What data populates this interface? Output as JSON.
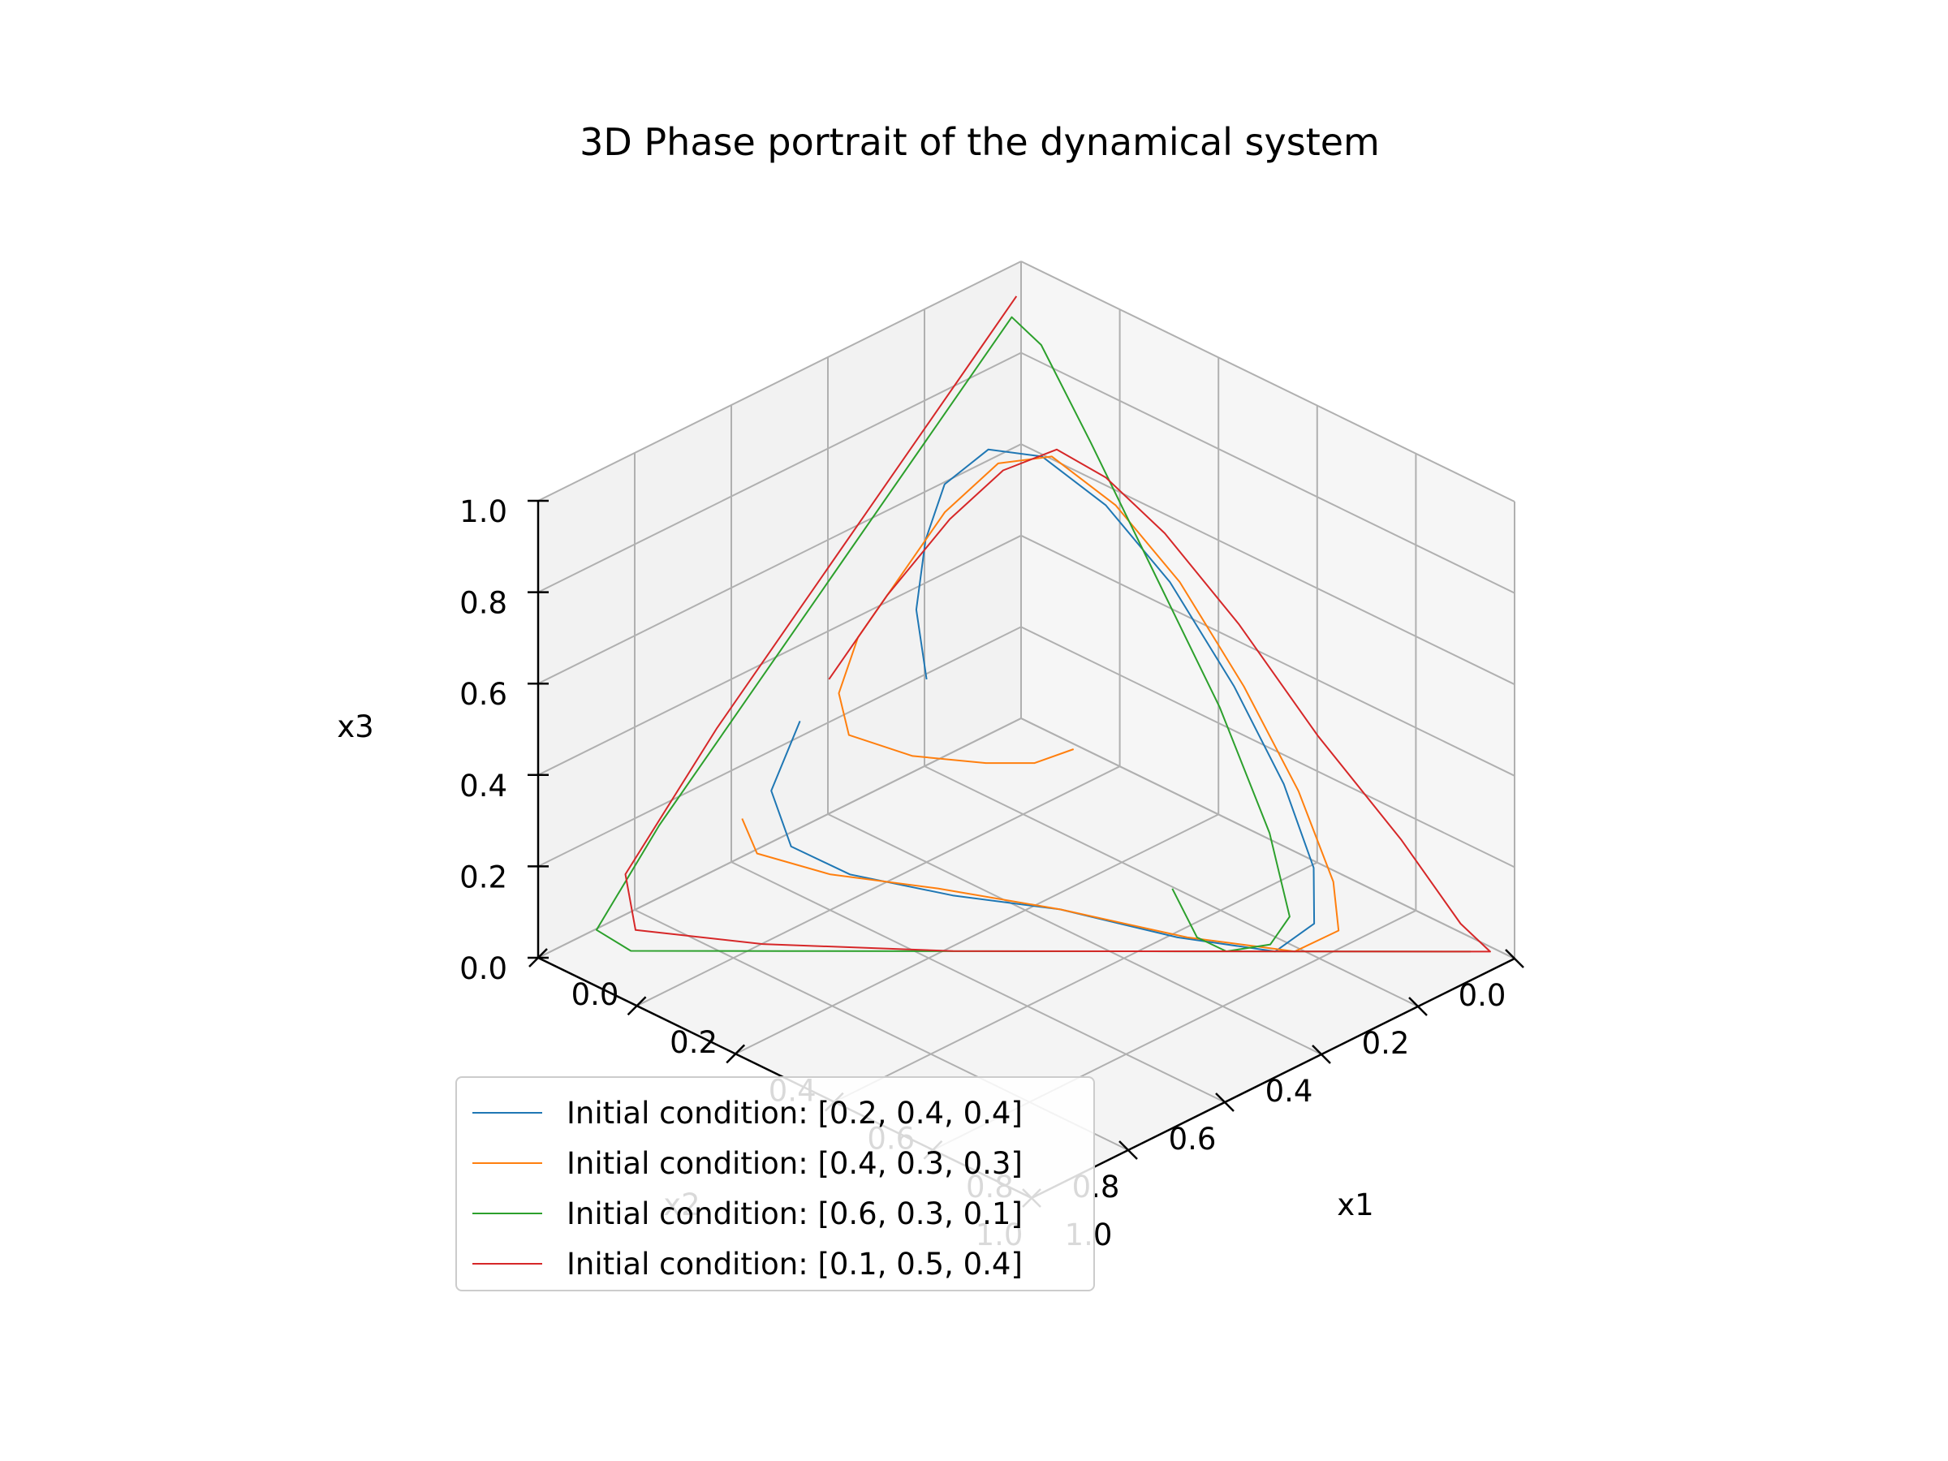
{
  "chart_data": {
    "type": "line",
    "projection": "3d",
    "title": "3D Phase portrait of the dynamical system",
    "xlabel": "x1",
    "ylabel": "x2",
    "zlabel": "x3",
    "xlim": [
      0,
      1
    ],
    "ylim": [
      0,
      1
    ],
    "zlim": [
      0,
      1
    ],
    "x_ticks": [
      "0.0",
      "0.2",
      "0.4",
      "0.6",
      "0.8",
      "1.0"
    ],
    "y_ticks": [
      "0.0",
      "0.2",
      "0.4",
      "0.6",
      "0.8",
      "1.0"
    ],
    "z_ticks": [
      "0.0",
      "0.2",
      "0.4",
      "0.6",
      "0.8",
      "1.0"
    ],
    "grid": true,
    "legend_position": "lower-left",
    "series": [
      {
        "name": "Initial condition: [0.2, 0.4, 0.4]",
        "color": "#1f77b4",
        "points": [
          [
            0.2,
            0.4,
            0.4
          ],
          [
            0.14,
            0.36,
            0.5
          ],
          [
            0.1,
            0.3,
            0.6
          ],
          [
            0.08,
            0.24,
            0.68
          ],
          [
            0.1,
            0.17,
            0.73
          ],
          [
            0.16,
            0.12,
            0.72
          ],
          [
            0.26,
            0.09,
            0.65
          ],
          [
            0.38,
            0.08,
            0.54
          ],
          [
            0.52,
            0.09,
            0.39
          ],
          [
            0.64,
            0.11,
            0.25
          ],
          [
            0.73,
            0.14,
            0.13
          ],
          [
            0.77,
            0.18,
            0.05
          ],
          [
            0.75,
            0.24,
            0.01
          ],
          [
            0.64,
            0.33,
            0.03
          ],
          [
            0.5,
            0.43,
            0.07
          ],
          [
            0.38,
            0.53,
            0.09
          ],
          [
            0.26,
            0.62,
            0.12
          ],
          [
            0.18,
            0.66,
            0.16
          ],
          [
            0.12,
            0.64,
            0.24
          ],
          [
            0.1,
            0.56,
            0.34
          ]
        ]
      },
      {
        "name": "Initial condition: [0.4, 0.3, 0.3]",
        "color": "#ff7f0e",
        "points": [
          [
            0.4,
            0.3,
            0.3
          ],
          [
            0.37,
            0.35,
            0.28
          ],
          [
            0.32,
            0.4,
            0.28
          ],
          [
            0.24,
            0.47,
            0.29
          ],
          [
            0.16,
            0.52,
            0.32
          ],
          [
            0.12,
            0.5,
            0.38
          ],
          [
            0.1,
            0.44,
            0.46
          ],
          [
            0.1,
            0.36,
            0.54
          ],
          [
            0.1,
            0.26,
            0.64
          ],
          [
            0.12,
            0.17,
            0.71
          ],
          [
            0.17,
            0.11,
            0.72
          ],
          [
            0.27,
            0.08,
            0.65
          ],
          [
            0.39,
            0.07,
            0.54
          ],
          [
            0.53,
            0.08,
            0.39
          ],
          [
            0.66,
            0.1,
            0.24
          ],
          [
            0.76,
            0.13,
            0.11
          ],
          [
            0.8,
            0.16,
            0.04
          ],
          [
            0.77,
            0.22,
            0.01
          ],
          [
            0.65,
            0.32,
            0.03
          ],
          [
            0.5,
            0.43,
            0.07
          ],
          [
            0.36,
            0.54,
            0.1
          ],
          [
            0.24,
            0.64,
            0.12
          ],
          [
            0.15,
            0.7,
            0.15
          ],
          [
            0.11,
            0.69,
            0.2
          ]
        ]
      },
      {
        "name": "Initial condition: [0.6, 0.3, 0.1]",
        "color": "#2ca02c",
        "points": [
          [
            0.6,
            0.3,
            0.1
          ],
          [
            0.66,
            0.31,
            0.03
          ],
          [
            0.7,
            0.29,
            0.01
          ],
          [
            0.74,
            0.24,
            0.02
          ],
          [
            0.74,
            0.2,
            0.06
          ],
          [
            0.66,
            0.16,
            0.18
          ],
          [
            0.52,
            0.12,
            0.36
          ],
          [
            0.36,
            0.09,
            0.55
          ],
          [
            0.2,
            0.06,
            0.74
          ],
          [
            0.08,
            0.04,
            0.88
          ],
          [
            0.03,
            0.05,
            0.92
          ],
          [
            0.03,
            0.2,
            0.77
          ],
          [
            0.03,
            0.4,
            0.57
          ],
          [
            0.03,
            0.6,
            0.37
          ],
          [
            0.03,
            0.78,
            0.19
          ],
          [
            0.04,
            0.92,
            0.04
          ],
          [
            0.09,
            0.9,
            0.01
          ],
          [
            0.25,
            0.74,
            0.01
          ],
          [
            0.45,
            0.54,
            0.01
          ],
          [
            0.65,
            0.34,
            0.01
          ],
          [
            0.85,
            0.14,
            0.01
          ],
          [
            0.95,
            0.04,
            0.01
          ]
        ]
      },
      {
        "name": "Initial condition: [0.1, 0.5, 0.4]",
        "color": "#d62728",
        "points": [
          [
            0.1,
            0.5,
            0.4
          ],
          [
            0.1,
            0.38,
            0.52
          ],
          [
            0.11,
            0.26,
            0.63
          ],
          [
            0.13,
            0.17,
            0.7
          ],
          [
            0.17,
            0.1,
            0.73
          ],
          [
            0.24,
            0.07,
            0.69
          ],
          [
            0.34,
            0.05,
            0.61
          ],
          [
            0.48,
            0.04,
            0.48
          ],
          [
            0.64,
            0.04,
            0.32
          ],
          [
            0.8,
            0.03,
            0.17
          ],
          [
            0.92,
            0.03,
            0.05
          ],
          [
            0.97,
            0.02,
            0.01
          ],
          [
            0.82,
            0.17,
            0.01
          ],
          [
            0.62,
            0.37,
            0.01
          ],
          [
            0.42,
            0.57,
            0.01
          ],
          [
            0.22,
            0.76,
            0.02
          ],
          [
            0.08,
            0.88,
            0.04
          ],
          [
            0.03,
            0.85,
            0.12
          ],
          [
            0.02,
            0.65,
            0.33
          ],
          [
            0.02,
            0.45,
            0.53
          ],
          [
            0.02,
            0.25,
            0.73
          ],
          [
            0.02,
            0.1,
            0.88
          ],
          [
            0.02,
            0.03,
            0.95
          ]
        ]
      }
    ]
  }
}
